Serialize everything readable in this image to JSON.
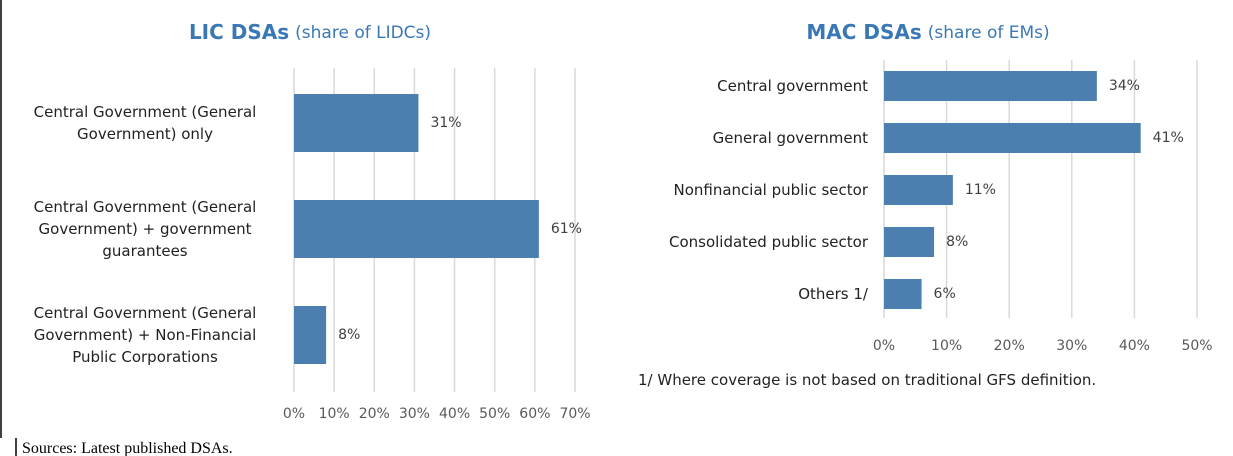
{
  "chart_data": [
    {
      "type": "bar",
      "orientation": "horizontal",
      "title": "LIC DSAs",
      "subtitle": "(share of LIDCs)",
      "categories": [
        "Central Government (General Government) only",
        "Central Government (General Government) + government guarantees",
        "Central Government (General Government) + Non-Financial Public Corporations"
      ],
      "values": [
        31,
        61,
        8
      ],
      "value_labels": [
        "31%",
        "61%",
        "8%"
      ],
      "color": "#4a7fb0",
      "xlim": [
        0,
        70
      ],
      "xticks": [
        {
          "value": 0,
          "label": "0%"
        },
        {
          "value": 10,
          "label": "10%"
        },
        {
          "value": 20,
          "label": "20%"
        },
        {
          "value": 30,
          "label": "30%"
        },
        {
          "value": 40,
          "label": "40%"
        },
        {
          "value": 50,
          "label": "50%"
        },
        {
          "value": 60,
          "label": "60%"
        },
        {
          "value": 70,
          "label": "70%"
        }
      ],
      "grid": true
    },
    {
      "type": "bar",
      "orientation": "horizontal",
      "title": "MAC DSAs",
      "subtitle": "(share of EMs)",
      "categories": [
        "Central government",
        "General government",
        "Nonfinancial public sector",
        "Consolidated public sector",
        "Others 1/"
      ],
      "values": [
        34,
        41,
        11,
        8,
        6
      ],
      "value_labels": [
        "34%",
        "41%",
        "11%",
        "8%",
        "6%"
      ],
      "color": "#4a7fb0",
      "xlim": [
        0,
        50
      ],
      "xticks": [
        {
          "value": 0,
          "label": "0%"
        },
        {
          "value": 10,
          "label": "10%"
        },
        {
          "value": 20,
          "label": "20%"
        },
        {
          "value": 30,
          "label": "30%"
        },
        {
          "value": 40,
          "label": "40%"
        },
        {
          "value": 50,
          "label": "50%"
        }
      ],
      "grid": true,
      "note": "1/ Where coverage is not based on traditional GFS definition."
    }
  ],
  "source": "Sources: Latest published DSAs."
}
